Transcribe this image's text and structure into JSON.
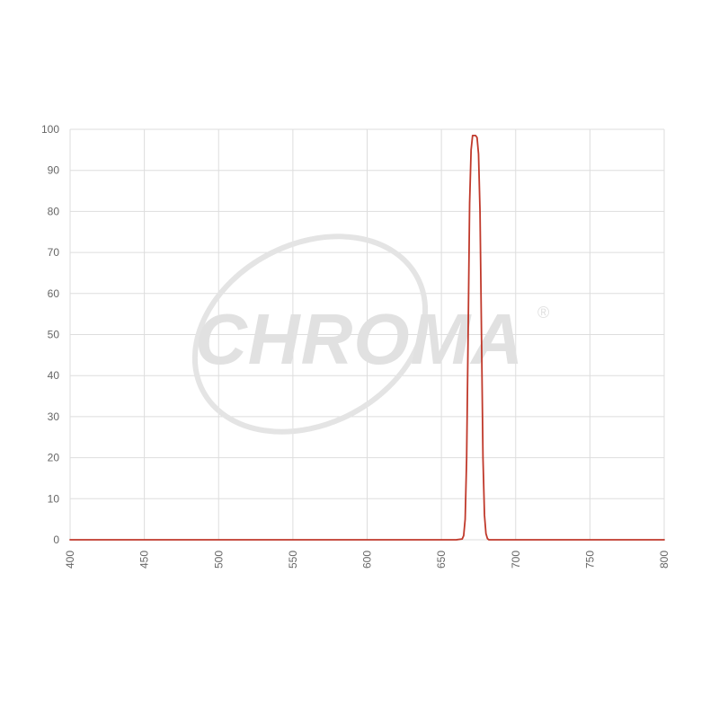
{
  "watermark": {
    "brand": "CHROMA",
    "registered_mark": "®",
    "fill_color": "#e1e1e1"
  },
  "colors": {
    "series": "#c0392b",
    "grid": "#dddddd",
    "tick_text": "#666666"
  },
  "chart_data": {
    "type": "line",
    "title": "",
    "xlabel": "",
    "ylabel": "",
    "xlim": [
      400,
      800
    ],
    "ylim": [
      0,
      100
    ],
    "x_ticks": [
      400,
      450,
      500,
      550,
      600,
      650,
      700,
      750,
      800
    ],
    "y_ticks": [
      0,
      10,
      20,
      30,
      40,
      50,
      60,
      70,
      80,
      90,
      100
    ],
    "grid": true,
    "legend": "none",
    "series": [
      {
        "color": "#c0392b",
        "x": [
          400,
          600,
          660,
          664,
          665,
          666,
          667,
          668,
          669,
          670,
          671,
          672,
          673,
          674,
          675,
          676,
          677,
          678,
          679,
          680,
          681,
          682,
          685,
          700,
          800
        ],
        "y": [
          0,
          0,
          0,
          0.2,
          1,
          5,
          20,
          50,
          82,
          95,
          98.5,
          98.5,
          98.5,
          98,
          94,
          80,
          50,
          20,
          6,
          1.5,
          0.3,
          0,
          0,
          0,
          0
        ]
      }
    ]
  }
}
